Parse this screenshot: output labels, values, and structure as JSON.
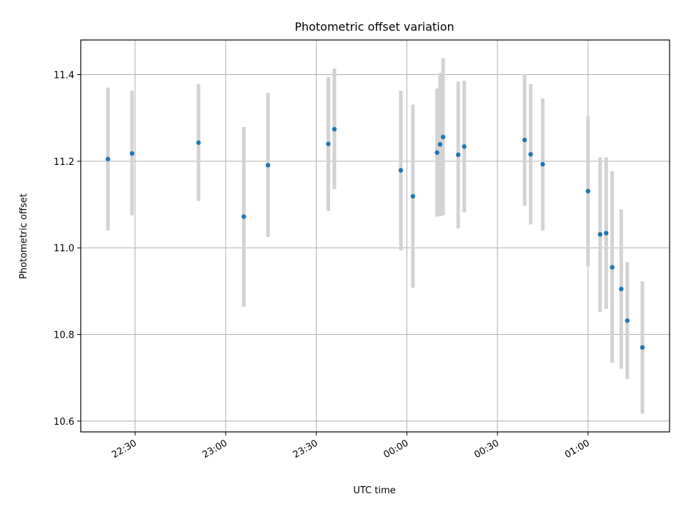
{
  "chart_data": {
    "type": "scatter",
    "title": "Photometric offset variation",
    "xlabel": "UTC time",
    "ylabel": "Photometric offset",
    "xlim": [
      "22:12",
      "01:27"
    ],
    "ylim": [
      10.575,
      11.48
    ],
    "grid": true,
    "x_ticks": [
      "22:30",
      "23:00",
      "23:30",
      "00:00",
      "00:30",
      "01:00"
    ],
    "y_ticks": [
      "10.6",
      "10.8",
      "11.0",
      "11.2",
      "11.4"
    ],
    "point_color": "#1f77b4",
    "errorbar_color": "#d3d3d3",
    "points": [
      {
        "t": "22:21",
        "y": 11.205,
        "lo": 11.04,
        "hi": 11.37
      },
      {
        "t": "22:29",
        "y": 11.218,
        "lo": 11.075,
        "hi": 11.363
      },
      {
        "t": "22:51",
        "y": 11.243,
        "lo": 11.108,
        "hi": 11.378
      },
      {
        "t": "23:06",
        "y": 11.072,
        "lo": 10.864,
        "hi": 11.279
      },
      {
        "t": "23:14",
        "y": 11.191,
        "lo": 11.025,
        "hi": 11.358
      },
      {
        "t": "23:34",
        "y": 11.24,
        "lo": 11.085,
        "hi": 11.394
      },
      {
        "t": "23:36",
        "y": 11.274,
        "lo": 11.135,
        "hi": 11.414
      },
      {
        "t": "23:58",
        "y": 11.179,
        "lo": 10.994,
        "hi": 11.363
      },
      {
        "t": "00:02",
        "y": 11.119,
        "lo": 10.908,
        "hi": 11.331
      },
      {
        "t": "00:10",
        "y": 11.22,
        "lo": 11.072,
        "hi": 11.368
      },
      {
        "t": "00:11",
        "y": 11.239,
        "lo": 11.073,
        "hi": 11.404
      },
      {
        "t": "00:12",
        "y": 11.256,
        "lo": 11.075,
        "hi": 11.438
      },
      {
        "t": "00:17",
        "y": 11.215,
        "lo": 11.045,
        "hi": 11.384
      },
      {
        "t": "00:19",
        "y": 11.234,
        "lo": 11.082,
        "hi": 11.386
      },
      {
        "t": "00:39",
        "y": 11.249,
        "lo": 11.097,
        "hi": 11.401
      },
      {
        "t": "00:41",
        "y": 11.216,
        "lo": 11.054,
        "hi": 11.378
      },
      {
        "t": "00:45",
        "y": 11.193,
        "lo": 11.04,
        "hi": 11.345
      },
      {
        "t": "01:00",
        "y": 11.131,
        "lo": 10.957,
        "hi": 11.304
      },
      {
        "t": "01:04",
        "y": 11.031,
        "lo": 10.852,
        "hi": 11.209
      },
      {
        "t": "01:06",
        "y": 11.034,
        "lo": 10.859,
        "hi": 11.209
      },
      {
        "t": "01:08",
        "y": 10.955,
        "lo": 10.734,
        "hi": 11.177
      },
      {
        "t": "01:11",
        "y": 10.905,
        "lo": 10.721,
        "hi": 11.089
      },
      {
        "t": "01:13",
        "y": 10.832,
        "lo": 10.697,
        "hi": 10.967
      },
      {
        "t": "01:18",
        "y": 10.77,
        "lo": 10.617,
        "hi": 10.923
      }
    ]
  }
}
